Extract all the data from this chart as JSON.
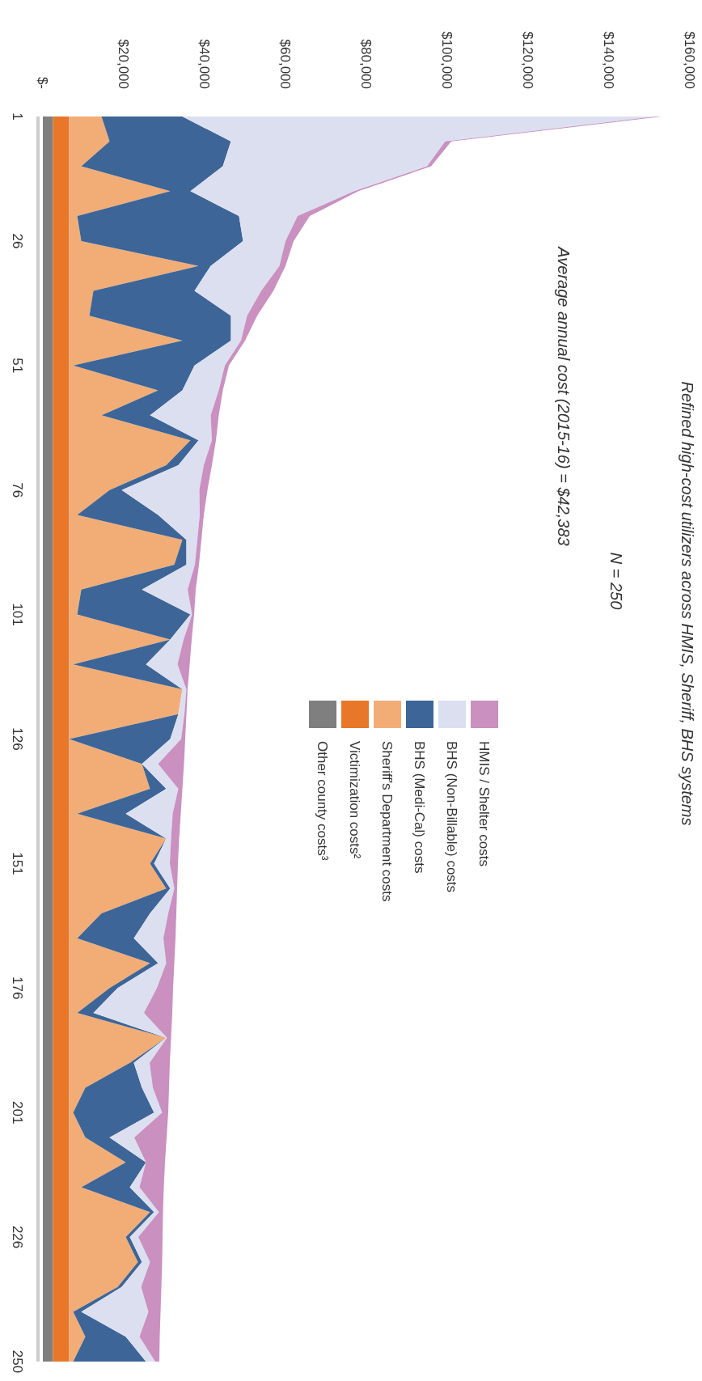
{
  "chart_data": {
    "type": "area",
    "stacked": true,
    "orientation": "horizontal",
    "title": "Refined high-cost utilizers across HMIS, Sheriff, BHS systems",
    "subtitle": "N = 250",
    "annotations": [
      "Average annual cost (2015-16) = $42,383"
    ],
    "categories": [
      "1",
      null,
      null,
      null,
      null,
      "26",
      null,
      null,
      null,
      null,
      "51",
      null,
      null,
      null,
      null,
      "76",
      null,
      null,
      null,
      null,
      "101",
      null,
      null,
      null,
      null,
      "126",
      null,
      null,
      null,
      null,
      "151",
      null,
      null,
      null,
      null,
      "176",
      null,
      null,
      null,
      null,
      "201",
      null,
      null,
      null,
      null,
      "226",
      null,
      null,
      null,
      null,
      "250"
    ],
    "xlim": [
      0,
      160000
    ],
    "xticks": [
      {
        "value": 0,
        "label": "$-"
      },
      {
        "value": 20000,
        "label": "$20,000"
      },
      {
        "value": 40000,
        "label": "$40,000"
      },
      {
        "value": 60000,
        "label": "$60,000"
      },
      {
        "value": 80000,
        "label": "$80,000"
      },
      {
        "value": 100000,
        "label": "$100,000"
      },
      {
        "value": 120000,
        "label": "$120,000"
      },
      {
        "value": 140000,
        "label": "$140,000"
      },
      {
        "value": 160000,
        "label": "$160,000"
      }
    ],
    "legend": "bottom",
    "series": [
      {
        "name": "Other county costs³",
        "color": "#7f7f7f",
        "values": [
          2500,
          2500,
          2500,
          2500,
          2500,
          2500,
          2500,
          2500,
          2500,
          2500,
          2500,
          2500,
          2500,
          2500,
          2500,
          2500,
          2500,
          2500,
          2500,
          2500,
          2500,
          2500,
          2500,
          2500,
          2500,
          2500,
          2500,
          2500,
          2500,
          2500,
          2500,
          2500,
          2500,
          2500,
          2500,
          2500,
          2500,
          2500,
          2500,
          2500,
          2500,
          2500,
          2500,
          2500,
          2500,
          2500,
          2500,
          2500,
          2500,
          2500,
          2500
        ]
      },
      {
        "name": "Victimization costs²",
        "color": "#e8772a",
        "values": [
          4000,
          4000,
          4000,
          4000,
          4000,
          4000,
          4000,
          4000,
          4000,
          4000,
          4000,
          4000,
          4000,
          4000,
          4000,
          4000,
          4000,
          4000,
          4000,
          4000,
          4000,
          4000,
          4000,
          4000,
          4000,
          4000,
          4000,
          4000,
          4000,
          4000,
          4000,
          4000,
          4000,
          4000,
          4000,
          4000,
          4000,
          4000,
          4000,
          4000,
          4000,
          4000,
          4000,
          4000,
          4000,
          4000,
          4000,
          4000,
          4000,
          4000,
          4000
        ]
      },
      {
        "name": "Sheriff's Department costs",
        "color": "#f2ad76",
        "values": [
          8000,
          10000,
          3000,
          25000,
          2000,
          3000,
          32000,
          6000,
          5000,
          28000,
          1000,
          22000,
          8000,
          30000,
          24000,
          10000,
          2000,
          28000,
          26000,
          3000,
          2000,
          25000,
          1000,
          28000,
          27000,
          0,
          18000,
          20000,
          2000,
          24000,
          20000,
          24000,
          8000,
          2000,
          20000,
          10000,
          2000,
          24000,
          15000,
          4000,
          1000,
          4000,
          14000,
          3000,
          20000,
          14000,
          17000,
          12000,
          1000,
          4000,
          1000
        ]
      },
      {
        "name": "BHS (Medi-Cal) costs",
        "color": "#3d6597",
        "values": [
          20000,
          30000,
          35000,
          5000,
          40000,
          40000,
          3000,
          25000,
          35000,
          12000,
          30000,
          6000,
          12000,
          2000,
          3000,
          3000,
          20000,
          1000,
          3000,
          15000,
          28000,
          0,
          18000,
          0,
          0,
          25000,
          0,
          4000,
          12000,
          0,
          1000,
          1000,
          12000,
          14000,
          2000,
          2000,
          4000,
          0,
          1000,
          14000,
          20000,
          6000,
          5000,
          12000,
          1000,
          1000,
          1000,
          1000,
          2000,
          10000,
          18000
        ]
      },
      {
        "name": "BHS (Non-Billable) costs",
        "color": "#dcdff0",
        "values": [
          117000,
          53000,
          50500,
          40500,
          14500,
          10500,
          17000,
          16500,
          4000,
          2500,
          7500,
          9000,
          15000,
          3300,
          6300,
          19200,
          10300,
          2700,
          2100,
          11300,
          400,
          3300,
          7800,
          1000,
          1500,
          2700,
          4000,
          3000,
          11600,
          1200,
          3900,
          1000,
          4500,
          7300,
          2000,
          9700,
          12500,
          200,
          3900,
          2700,
          2000,
          6100,
          0,
          2400,
          1200,
          2100,
          2000,
          4800,
          16600,
          3400,
          2300
        ]
      },
      {
        "name": "HMIS / Shelter costs",
        "color": "#c990c0",
        "values": [
          1500,
          1500,
          1000,
          1000,
          3000,
          2000,
          1500,
          3000,
          2500,
          1000,
          1000,
          1000,
          2000,
          1000,
          2000,
          2000,
          1000,
          1000,
          1000,
          2000,
          500,
          2000,
          3000,
          300,
          500,
          1000,
          6400,
          1000,
          2000,
          2000,
          2000,
          700,
          2000,
          3000,
          2000,
          4000,
          7000,
          1000,
          5000,
          4000,
          1500,
          8000,
          4700,
          6000,
          1000,
          6000,
          3000,
          5000,
          3000,
          5000,
          1000
        ]
      }
    ]
  }
}
